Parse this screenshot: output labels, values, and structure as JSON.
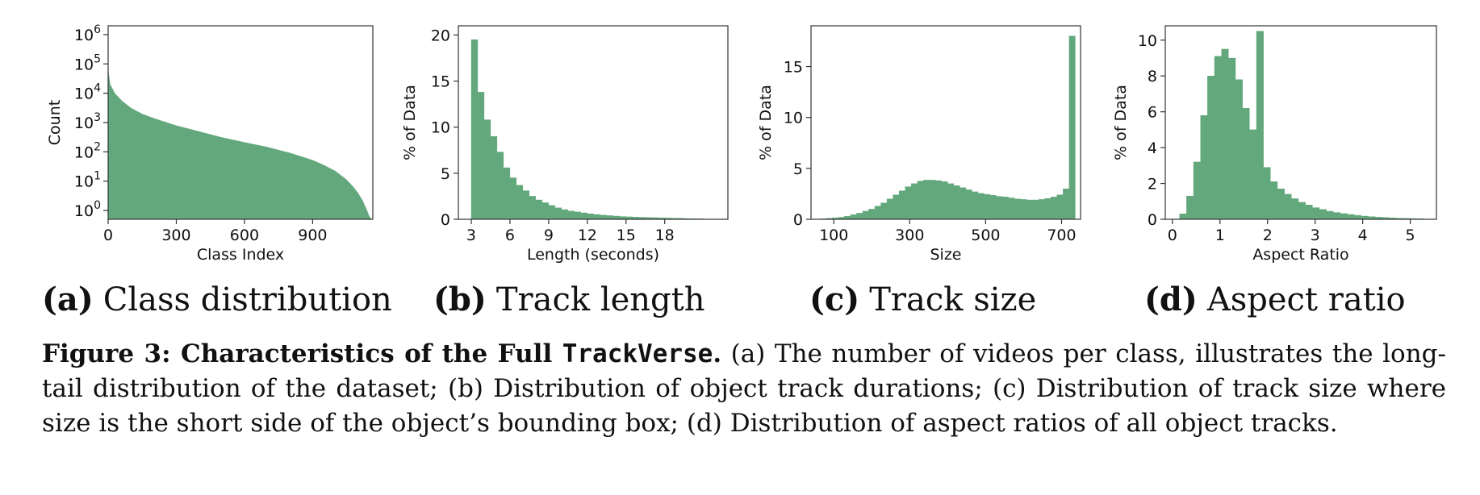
{
  "colors": {
    "bar": "#63a87c",
    "axis": "#333333",
    "text": "#111111"
  },
  "subcaptions": [
    {
      "label": "(a)",
      "text": "Class distribution"
    },
    {
      "label": "(b)",
      "text": "Track length"
    },
    {
      "label": "(c)",
      "text": "Track size"
    },
    {
      "label": "(d)",
      "text": "Aspect ratio"
    }
  ],
  "caption": {
    "lead": "Figure 3: Characteristics of the Full ",
    "code": "TrackVerse",
    "lead_end": ".",
    "body": " (a) The number of videos per class, illustrates the long-tail distribution of the dataset; (b) Distribution of object track durations; (c) Distribution of track size where size is the short side of the object’s bounding box; (d) Distribution of aspect ratios of all object tracks."
  },
  "chart_data": [
    {
      "type": "area",
      "xlabel": "Class Index",
      "ylabel": "Count",
      "yscale": "log",
      "xlim": [
        0,
        1165
      ],
      "ylim_exp": [
        -0.3,
        6.3
      ],
      "xticks": [
        0,
        300,
        600,
        900
      ],
      "xtick_labels": [
        "0",
        "300",
        "600",
        "900"
      ],
      "yticks_exp": [
        0,
        1,
        2,
        3,
        4,
        5,
        6
      ],
      "ytick_base": "10",
      "curve_x": [
        0,
        10,
        30,
        60,
        100,
        150,
        200,
        300,
        400,
        500,
        600,
        700,
        800,
        900,
        950,
        1000,
        1050,
        1080,
        1100,
        1120,
        1140,
        1150,
        1160,
        1165
      ],
      "curve_log10": [
        4.8,
        4.3,
        4.0,
        3.75,
        3.5,
        3.3,
        3.15,
        2.9,
        2.7,
        2.5,
        2.33,
        2.17,
        1.97,
        1.72,
        1.55,
        1.35,
        1.05,
        0.8,
        0.6,
        0.35,
        0.0,
        -0.2,
        -0.3,
        -0.3
      ]
    },
    {
      "type": "bar",
      "xlabel": "Length (seconds)",
      "ylabel": "% of Data",
      "xlim": [
        2.0,
        22.9
      ],
      "ylim": [
        0,
        21
      ],
      "xticks": [
        3,
        6,
        9,
        12,
        15,
        18
      ],
      "xtick_labels": [
        "3",
        "6",
        "9",
        "12",
        "15",
        "18"
      ],
      "yticks": [
        0,
        5,
        10,
        15,
        20
      ],
      "ytick_labels": [
        "0",
        "5",
        "10",
        "15",
        "20"
      ],
      "bins_x0": 3.0,
      "bin_width": 0.5,
      "values": [
        19.5,
        13.8,
        10.8,
        9.0,
        7.3,
        5.6,
        4.5,
        3.7,
        3.1,
        2.5,
        2.1,
        1.8,
        1.5,
        1.25,
        1.05,
        0.9,
        0.8,
        0.7,
        0.6,
        0.52,
        0.45,
        0.4,
        0.35,
        0.3,
        0.27,
        0.24,
        0.22,
        0.2,
        0.18,
        0.16,
        0.14,
        0.12,
        0.1,
        0.08,
        0.06,
        0.05
      ]
    },
    {
      "type": "bar",
      "xlabel": "Size",
      "ylabel": "% of Data",
      "xlim": [
        40,
        750
      ],
      "ylim": [
        0,
        19
      ],
      "xticks": [
        100,
        300,
        500,
        700
      ],
      "xtick_labels": [
        "100",
        "300",
        "500",
        "700"
      ],
      "yticks": [
        0,
        5,
        10,
        15
      ],
      "ytick_labels": [
        "0",
        "5",
        "10",
        "15"
      ],
      "bins_x0": 64,
      "bin_width": 16,
      "values": [
        0.05,
        0.1,
        0.15,
        0.2,
        0.3,
        0.45,
        0.6,
        0.8,
        1.0,
        1.3,
        1.6,
        2.0,
        2.4,
        2.8,
        3.2,
        3.5,
        3.75,
        3.85,
        3.85,
        3.8,
        3.7,
        3.5,
        3.3,
        3.1,
        2.9,
        2.7,
        2.55,
        2.45,
        2.35,
        2.25,
        2.2,
        2.1,
        2.0,
        1.95,
        1.9,
        1.9,
        1.95,
        2.05,
        2.2,
        2.4,
        3.0,
        18.0
      ]
    },
    {
      "type": "bar",
      "xlabel": "Aspect Ratio",
      "ylabel": "% of Data",
      "xlim": [
        -0.15,
        5.55
      ],
      "ylim": [
        0,
        10.8
      ],
      "xticks": [
        0,
        1,
        2,
        3,
        4,
        5
      ],
      "xtick_labels": [
        "0",
        "1",
        "2",
        "3",
        "4",
        "5"
      ],
      "yticks": [
        0,
        2,
        4,
        6,
        8,
        10
      ],
      "ytick_labels": [
        "0",
        "2",
        "4",
        "6",
        "8",
        "10"
      ],
      "bins_x0": 0.15,
      "bin_width": 0.147,
      "values": [
        0.3,
        1.3,
        3.2,
        5.8,
        8.0,
        9.1,
        9.5,
        9.0,
        7.8,
        6.2,
        5.0,
        10.5,
        2.9,
        2.1,
        1.7,
        1.4,
        1.15,
        0.95,
        0.8,
        0.65,
        0.55,
        0.45,
        0.38,
        0.32,
        0.27,
        0.22,
        0.18,
        0.15,
        0.12,
        0.1,
        0.08,
        0.06,
        0.05,
        0.04,
        0.03
      ]
    }
  ]
}
